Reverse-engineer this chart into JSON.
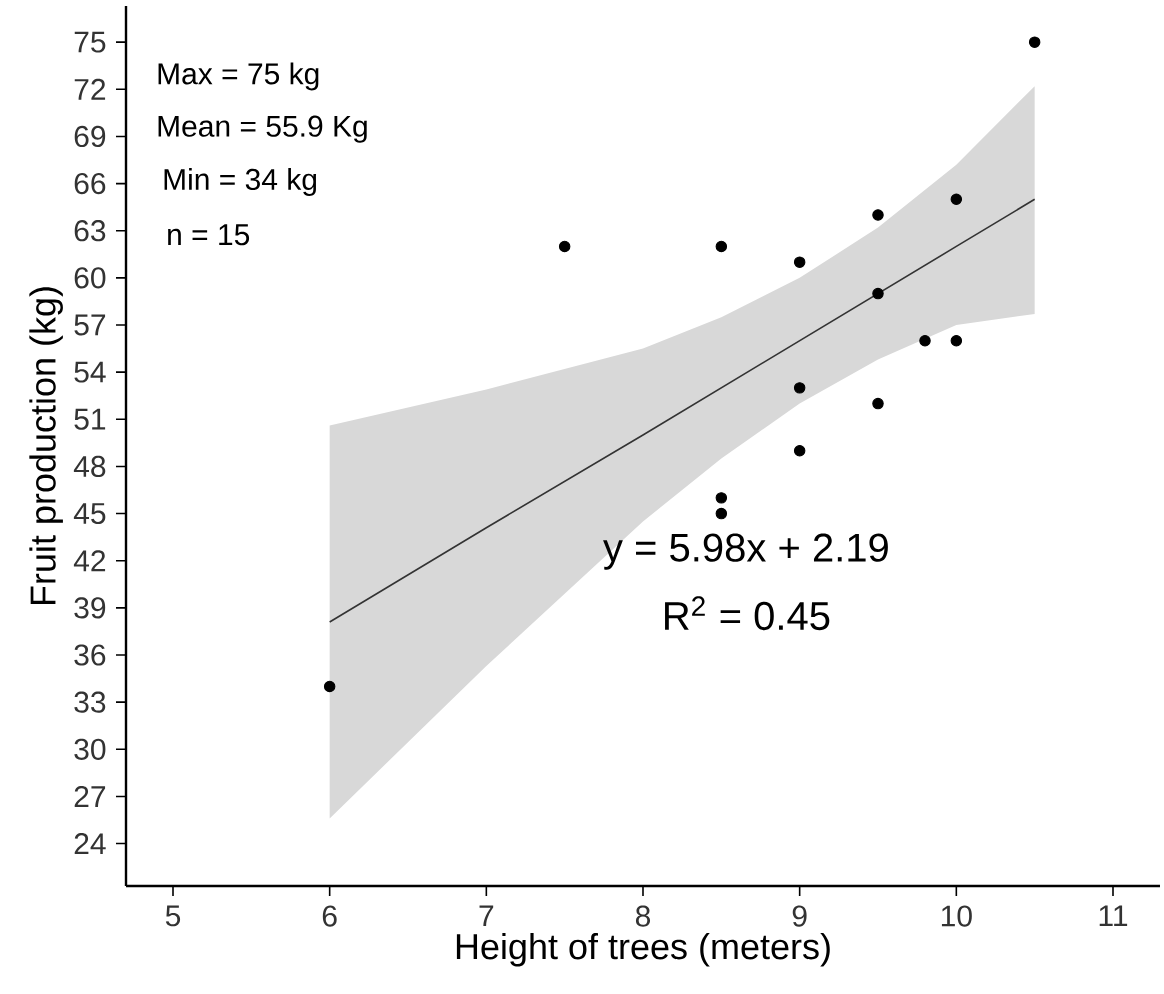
{
  "chart_data": {
    "type": "scatter",
    "xlabel": "Height of trees (meters)",
    "ylabel": "Fruit production (kg)",
    "xlim": [
      4.7,
      11.3
    ],
    "ylim": [
      21.3,
      77.3
    ],
    "xticks": [
      5,
      6,
      7,
      8,
      9,
      10,
      11
    ],
    "yticks": [
      24,
      27,
      30,
      33,
      36,
      39,
      42,
      45,
      48,
      51,
      54,
      57,
      60,
      63,
      66,
      69,
      72,
      75
    ],
    "grid": false,
    "series": [
      {
        "type": "line",
        "marker": "none",
        "color": "#333333",
        "x": [
          6,
          7,
          8,
          8.5,
          9,
          9.5,
          10,
          10.5
        ],
        "values": [
          38.1,
          44.1,
          50.0,
          53.0,
          56.0,
          59.0,
          62.0,
          65.0
        ],
        "lower": [
          25.6,
          35.3,
          44.5,
          48.5,
          52.0,
          54.8,
          57.0,
          57.7
        ],
        "upper": [
          50.6,
          52.9,
          55.5,
          57.5,
          60.0,
          63.2,
          67.2,
          72.2
        ]
      },
      {
        "marker": "circle",
        "color": "#000000",
        "x": [
          10.5,
          7.5,
          8.5,
          9,
          9.5,
          10,
          9.5,
          9.8,
          10,
          9,
          9.5,
          9,
          8.5,
          8.5,
          6
        ],
        "values": [
          75,
          62,
          62,
          61,
          64,
          65,
          59,
          56,
          56,
          53,
          52,
          49,
          46,
          45,
          34
        ]
      }
    ],
    "annotations": [
      "Max = 75 kg",
      "Mean = 55.9 Kg",
      "Min = 34 kg",
      "n = 15",
      "y = 5.98x + 2.19",
      "R$^{2}$ = 0.45"
    ]
  }
}
